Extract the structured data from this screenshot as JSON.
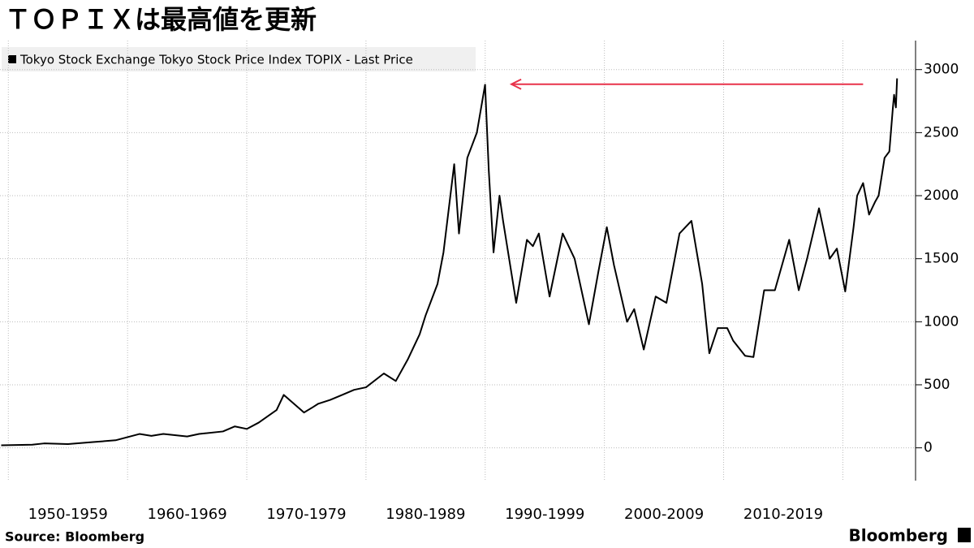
{
  "chart_data": {
    "type": "line",
    "title": "ＴＯＰＩＸは最高値を更新",
    "legend_label": "Tokyo Stock Exchange Tokyo Stock Price Index TOPIX - Last Price",
    "source": "Source:  Bloomberg",
    "brand": "Bloomberg",
    "series": [
      {
        "name": "Tokyo Stock Exchange Tokyo Stock Price Index TOPIX - Last Price",
        "color": "#000000",
        "x": [
          1949.4,
          1952,
          1953,
          1955,
          1957,
          1959,
          1961,
          1962,
          1963,
          1965,
          1966,
          1968,
          1969,
          1970,
          1971,
          1972.5,
          1973.1,
          1974.8,
          1975.5,
          1976,
          1977,
          1978,
          1979,
          1980,
          1981.5,
          1982.5,
          1983.5,
          1984.5,
          1985,
          1986,
          1986.5,
          1987.4,
          1987.8,
          1988.5,
          1989.3,
          1989.99,
          1990.3,
          1990.7,
          1991.2,
          1991.5,
          1992.6,
          1993.5,
          1994,
          1994.5,
          1995.4,
          1996.5,
          1997.5,
          1998.7,
          1999.5,
          2000.2,
          2000.8,
          2001.9,
          2002.5,
          2003.3,
          2004.3,
          2005.2,
          2006.3,
          2007.3,
          2008.2,
          2008.8,
          2009.5,
          2010.3,
          2010.8,
          2011.8,
          2012.5,
          2013.4,
          2014.3,
          2015.5,
          2016.3,
          2017,
          2018,
          2018.9,
          2019.5,
          2020.2,
          2020.9,
          2021.2,
          2021.7,
          2022.2,
          2022.7,
          2023.0,
          2023.5,
          2023.9,
          2024.2,
          2024.3,
          2024.45,
          2024.55
        ],
        "values": [
          20,
          25,
          35,
          30,
          45,
          60,
          110,
          95,
          110,
          90,
          110,
          130,
          170,
          150,
          200,
          300,
          420,
          280,
          320,
          350,
          380,
          420,
          460,
          480,
          590,
          530,
          700,
          900,
          1050,
          1300,
          1550,
          2250,
          1700,
          2300,
          2500,
          2880,
          2200,
          1550,
          2000,
          1800,
          1150,
          1650,
          1600,
          1700,
          1200,
          1700,
          1500,
          980,
          1400,
          1750,
          1450,
          1000,
          1100,
          780,
          1200,
          1150,
          1700,
          1800,
          1300,
          750,
          950,
          950,
          850,
          730,
          720,
          1250,
          1250,
          1650,
          1250,
          1500,
          1900,
          1500,
          1580,
          1240,
          1750,
          2000,
          2100,
          1850,
          1950,
          2000,
          2300,
          2350,
          2700,
          2800,
          2700,
          2930
        ]
      }
    ],
    "reference_arrow": {
      "value": 2884,
      "x_start": 2021.7,
      "x_end": 1992.2,
      "color": "#e8324a"
    },
    "xlim": [
      1949.3,
      2026.1
    ],
    "x_gridlines": [
      1950,
      1960,
      1970,
      1980,
      1990,
      2000,
      2010,
      2020
    ],
    "xticks": [
      {
        "value": 1955,
        "label": "1950-1959"
      },
      {
        "value": 1965,
        "label": "1960-1969"
      },
      {
        "value": 1975,
        "label": "1970-1979"
      },
      {
        "value": 1985,
        "label": "1980-1989"
      },
      {
        "value": 1995,
        "label": "1990-1999"
      },
      {
        "value": 2005,
        "label": "2000-2009"
      },
      {
        "value": 2015,
        "label": "2010-2019"
      }
    ],
    "ylim": [
      -260,
      3230
    ],
    "yticks": [
      0,
      500,
      1000,
      1500,
      2000,
      2500,
      3000
    ],
    "grid": true
  }
}
